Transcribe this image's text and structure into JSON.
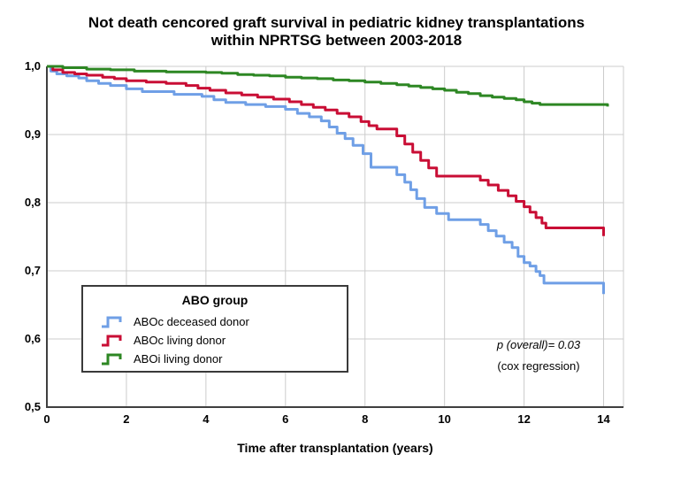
{
  "title": {
    "line1": "Not death cencored graft survival in pediatric kidney transplantations",
    "line2": "within NPRTSG between 2003-2018"
  },
  "axes": {
    "x": {
      "label": "Time after transplantation (years)",
      "tick_labels": [
        "0",
        "2",
        "4",
        "6",
        "8",
        "10",
        "12",
        "14"
      ],
      "tick_values": [
        0,
        2,
        4,
        6,
        8,
        10,
        12,
        14
      ],
      "range": [
        0,
        14.5
      ]
    },
    "y": {
      "tick_labels": [
        "1,0",
        "0,9",
        "0,8",
        "0,7",
        "0,6",
        "0,5"
      ],
      "tick_values": [
        1.0,
        0.9,
        0.8,
        0.7,
        0.6,
        0.5
      ],
      "range": [
        0.5,
        1.0
      ]
    }
  },
  "legend": {
    "title": "ABO group",
    "items": [
      {
        "label": "ABOc deceased donor",
        "color": "#6F9FE6"
      },
      {
        "label": "ABOc living donor",
        "color": "#C90E35"
      },
      {
        "label": "ABOi living donor",
        "color": "#2D8723"
      }
    ]
  },
  "annotation": {
    "line1": "p (overall)= 0.03",
    "line2": "(cox regression)"
  },
  "colors": {
    "gridline": "#cccccc",
    "axis": "#3f3f3f",
    "background": "#ffffff",
    "text": "#000000"
  },
  "chart_data": {
    "type": "line",
    "subtype": "kaplan-meier-step",
    "title": "Not death cencored graft survival in pediatric kidney transplantations within NPRTSG between 2003-2018",
    "xlabel": "Time after transplantation (years)",
    "ylabel": "",
    "xlim": [
      0,
      14.5
    ],
    "ylim": [
      0.5,
      1.0
    ],
    "grid": true,
    "legend_position": "lower-left-inside",
    "series": [
      {
        "name": "ABOc deceased donor",
        "color": "#6F9FE6",
        "points": [
          [
            0,
            1.0
          ],
          [
            0.1,
            0.993
          ],
          [
            0.25,
            0.989
          ],
          [
            0.5,
            0.986
          ],
          [
            0.8,
            0.983
          ],
          [
            1.0,
            0.979
          ],
          [
            1.3,
            0.975
          ],
          [
            1.6,
            0.972
          ],
          [
            2.0,
            0.967
          ],
          [
            2.4,
            0.963
          ],
          [
            3.2,
            0.959
          ],
          [
            3.9,
            0.956
          ],
          [
            4.2,
            0.951
          ],
          [
            4.5,
            0.947
          ],
          [
            5.0,
            0.944
          ],
          [
            5.5,
            0.941
          ],
          [
            6.0,
            0.937
          ],
          [
            6.3,
            0.931
          ],
          [
            6.6,
            0.926
          ],
          [
            6.9,
            0.92
          ],
          [
            7.1,
            0.911
          ],
          [
            7.3,
            0.902
          ],
          [
            7.5,
            0.894
          ],
          [
            7.7,
            0.884
          ],
          [
            7.95,
            0.872
          ],
          [
            8.15,
            0.852
          ],
          [
            8.8,
            0.841
          ],
          [
            9.0,
            0.83
          ],
          [
            9.15,
            0.819
          ],
          [
            9.3,
            0.806
          ],
          [
            9.5,
            0.793
          ],
          [
            9.8,
            0.784
          ],
          [
            10.1,
            0.775
          ],
          [
            10.9,
            0.768
          ],
          [
            11.1,
            0.759
          ],
          [
            11.3,
            0.751
          ],
          [
            11.5,
            0.742
          ],
          [
            11.7,
            0.734
          ],
          [
            11.85,
            0.721
          ],
          [
            12.0,
            0.712
          ],
          [
            12.15,
            0.707
          ],
          [
            12.3,
            0.699
          ],
          [
            12.4,
            0.693
          ],
          [
            12.5,
            0.682
          ],
          [
            13.95,
            0.682
          ],
          [
            14.0,
            0.666
          ]
        ]
      },
      {
        "name": "ABOc living donor",
        "color": "#C90E35",
        "points": [
          [
            0,
            1.0
          ],
          [
            0.15,
            0.995
          ],
          [
            0.4,
            0.991
          ],
          [
            0.7,
            0.989
          ],
          [
            1.0,
            0.987
          ],
          [
            1.4,
            0.984
          ],
          [
            1.7,
            0.982
          ],
          [
            2.0,
            0.979
          ],
          [
            2.5,
            0.977
          ],
          [
            3.0,
            0.975
          ],
          [
            3.5,
            0.972
          ],
          [
            3.8,
            0.968
          ],
          [
            4.1,
            0.965
          ],
          [
            4.5,
            0.961
          ],
          [
            4.9,
            0.958
          ],
          [
            5.3,
            0.955
          ],
          [
            5.7,
            0.952
          ],
          [
            6.1,
            0.948
          ],
          [
            6.4,
            0.944
          ],
          [
            6.7,
            0.94
          ],
          [
            7.0,
            0.936
          ],
          [
            7.3,
            0.931
          ],
          [
            7.6,
            0.926
          ],
          [
            7.9,
            0.919
          ],
          [
            8.1,
            0.913
          ],
          [
            8.3,
            0.908
          ],
          [
            8.8,
            0.898
          ],
          [
            9.0,
            0.886
          ],
          [
            9.2,
            0.874
          ],
          [
            9.4,
            0.862
          ],
          [
            9.6,
            0.851
          ],
          [
            9.8,
            0.839
          ],
          [
            10.9,
            0.833
          ],
          [
            11.1,
            0.826
          ],
          [
            11.35,
            0.818
          ],
          [
            11.6,
            0.81
          ],
          [
            11.8,
            0.802
          ],
          [
            12.0,
            0.794
          ],
          [
            12.15,
            0.786
          ],
          [
            12.3,
            0.778
          ],
          [
            12.45,
            0.77
          ],
          [
            12.55,
            0.763
          ],
          [
            13.95,
            0.763
          ],
          [
            14.0,
            0.751
          ]
        ]
      },
      {
        "name": "ABOi living donor",
        "color": "#2D8723",
        "points": [
          [
            0,
            1.0
          ],
          [
            0.4,
            0.998
          ],
          [
            1.0,
            0.996
          ],
          [
            1.6,
            0.995
          ],
          [
            2.2,
            0.993
          ],
          [
            3.0,
            0.992
          ],
          [
            4.0,
            0.991
          ],
          [
            4.4,
            0.99
          ],
          [
            4.8,
            0.988
          ],
          [
            5.2,
            0.987
          ],
          [
            5.6,
            0.986
          ],
          [
            6.0,
            0.984
          ],
          [
            6.4,
            0.983
          ],
          [
            6.8,
            0.982
          ],
          [
            7.2,
            0.98
          ],
          [
            7.6,
            0.979
          ],
          [
            8.0,
            0.977
          ],
          [
            8.4,
            0.975
          ],
          [
            8.8,
            0.973
          ],
          [
            9.1,
            0.971
          ],
          [
            9.4,
            0.969
          ],
          [
            9.7,
            0.967
          ],
          [
            10.0,
            0.965
          ],
          [
            10.3,
            0.962
          ],
          [
            10.6,
            0.96
          ],
          [
            10.9,
            0.957
          ],
          [
            11.2,
            0.955
          ],
          [
            11.5,
            0.953
          ],
          [
            11.8,
            0.951
          ],
          [
            12.0,
            0.948
          ],
          [
            12.2,
            0.946
          ],
          [
            12.4,
            0.944
          ],
          [
            14.05,
            0.944
          ],
          [
            14.1,
            0.941
          ]
        ]
      }
    ]
  }
}
